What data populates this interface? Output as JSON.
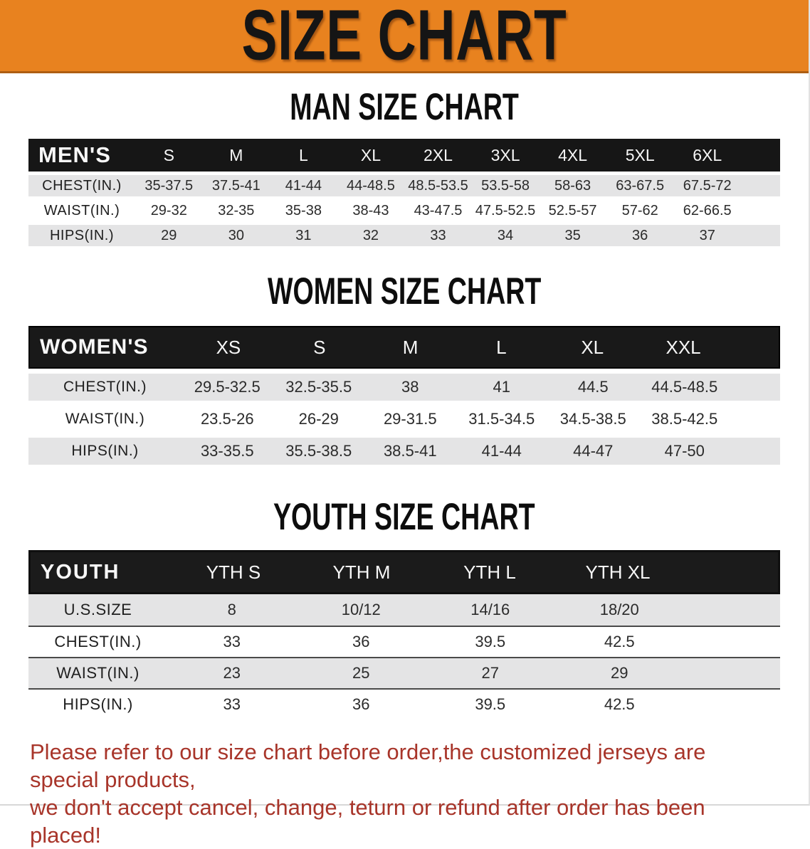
{
  "banner": {
    "title": "SIZE CHART"
  },
  "colors": {
    "banner_bg": "#E8821F",
    "banner_border": "#AE5E12",
    "table_header_bg": "#161616",
    "row_alt_bg": "#E4E4E5",
    "footer_text": "#A8352A"
  },
  "men": {
    "section_title": "MAN SIZE CHART",
    "corner_label": "MEN'S",
    "sizes": [
      "S",
      "M",
      "L",
      "XL",
      "2XL",
      "3XL",
      "4XL",
      "5XL",
      "6XL"
    ],
    "rows": [
      {
        "label": "CHEST(IN.)",
        "values": [
          "35-37.5",
          "37.5-41",
          "41-44",
          "44-48.5",
          "48.5-53.5",
          "53.5-58",
          "58-63",
          "63-67.5",
          "67.5-72"
        ]
      },
      {
        "label": "WAIST(IN.)",
        "values": [
          "29-32",
          "32-35",
          "35-38",
          "38-43",
          "43-47.5",
          "47.5-52.5",
          "52.5-57",
          "57-62",
          "62-66.5"
        ]
      },
      {
        "label": "HIPS(IN.)",
        "values": [
          "29",
          "30",
          "31",
          "32",
          "33",
          "34",
          "35",
          "36",
          "37"
        ]
      }
    ]
  },
  "women": {
    "section_title": "WOMEN SIZE CHART",
    "corner_label": "WOMEN'S",
    "sizes": [
      "XS",
      "S",
      "M",
      "L",
      "XL",
      "XXL"
    ],
    "rows": [
      {
        "label": "CHEST(IN.)",
        "values": [
          "29.5-32.5",
          "32.5-35.5",
          "38",
          "41",
          "44.5",
          "44.5-48.5"
        ]
      },
      {
        "label": "WAIST(IN.)",
        "values": [
          "23.5-26",
          "26-29",
          "29-31.5",
          "31.5-34.5",
          "34.5-38.5",
          "38.5-42.5"
        ]
      },
      {
        "label": "HIPS(IN.)",
        "values": [
          "33-35.5",
          "35.5-38.5",
          "38.5-41",
          "41-44",
          "44-47",
          "47-50"
        ]
      }
    ]
  },
  "youth": {
    "section_title": "YOUTH SIZE CHART",
    "corner_label": "YOUTH",
    "sizes": [
      "YTH S",
      "YTH M",
      "YTH L",
      "YTH XL"
    ],
    "rows": [
      {
        "label": "U.S.SIZE",
        "values": [
          "8",
          "10/12",
          "14/16",
          "18/20"
        ]
      },
      {
        "label": "CHEST(IN.)",
        "values": [
          "33",
          "36",
          "39.5",
          "42.5"
        ]
      },
      {
        "label": "WAIST(IN.)",
        "values": [
          "23",
          "25",
          "27",
          "29"
        ]
      },
      {
        "label": "HIPS(IN.)",
        "values": [
          "33",
          "36",
          "39.5",
          "42.5"
        ]
      }
    ]
  },
  "footer": {
    "line1": "Please refer to our size chart before order,the customized jerseys are special products,",
    "line2": "we don't accept cancel, change, teturn or refund after order has been placed!"
  }
}
